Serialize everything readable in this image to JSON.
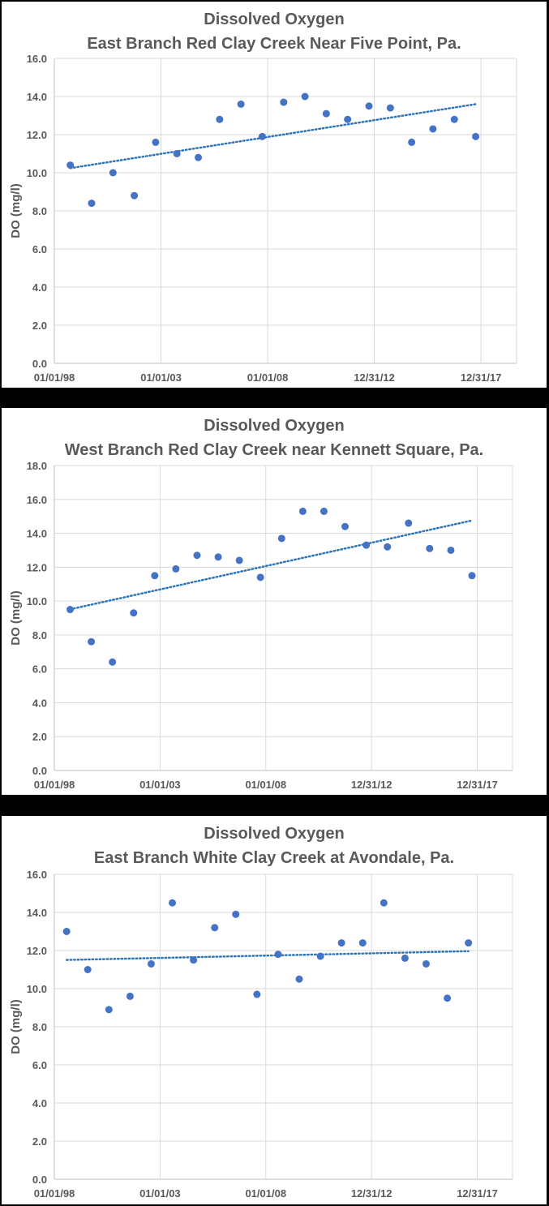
{
  "chart_data": [
    {
      "type": "scatter",
      "title": "Dissolved Oxygen",
      "subtitle": "East Branch Red Clay Creek Near Five Point, Pa.",
      "ylabel": "DO (mg/l)",
      "xlabel": "",
      "x_ticks": [
        "01/01/98",
        "01/01/03",
        "01/01/08",
        "12/31/12",
        "12/31/17"
      ],
      "x_range": [
        "1998-01-01",
        "2019-09-01"
      ],
      "ylim": [
        0,
        16
      ],
      "y_ticks": [
        "0.0",
        "2.0",
        "4.0",
        "6.0",
        "8.0",
        "10.0",
        "12.0",
        "14.0",
        "16.0"
      ],
      "grid": "vertical and horizontal gridlines",
      "trendline": "linear, dotted",
      "colors": {
        "points": "#4472c4",
        "trend": "#2e75b6"
      },
      "x": [
        "1998-10-01",
        "1999-10-01",
        "2000-10-01",
        "2001-10-01",
        "2002-10-01",
        "2003-10-01",
        "2004-10-01",
        "2005-10-01",
        "2006-10-01",
        "2007-10-01",
        "2008-10-01",
        "2009-10-01",
        "2010-10-01",
        "2011-10-01",
        "2012-10-01",
        "2013-10-01",
        "2014-10-01",
        "2015-10-01",
        "2016-10-01",
        "2017-10-01"
      ],
      "y": [
        10.4,
        8.4,
        10.0,
        8.8,
        11.6,
        11.0,
        10.8,
        12.8,
        13.6,
        11.9,
        13.7,
        14.0,
        13.1,
        12.8,
        13.5,
        13.4,
        11.6,
        12.3,
        12.8,
        11.9
      ]
    },
    {
      "type": "scatter",
      "title": "Dissolved Oxygen",
      "subtitle": "West Branch Red Clay Creek near Kennett Square, Pa.",
      "ylabel": "DO (mg/l)",
      "xlabel": "",
      "x_ticks": [
        "01/01/98",
        "01/01/03",
        "01/01/08",
        "12/31/12",
        "12/31/17"
      ],
      "x_range": [
        "1998-01-01",
        "2019-09-01"
      ],
      "ylim": [
        0,
        18
      ],
      "y_ticks": [
        "0.0",
        "2.0",
        "4.0",
        "6.0",
        "8.0",
        "10.0",
        "12.0",
        "14.0",
        "16.0",
        "18.0"
      ],
      "grid": "vertical and horizontal gridlines",
      "trendline": "linear, dotted",
      "colors": {
        "points": "#4472c4",
        "trend": "#2e75b6"
      },
      "x": [
        "1998-10-01",
        "1999-10-01",
        "2000-10-01",
        "2001-10-01",
        "2002-10-01",
        "2003-10-01",
        "2004-10-01",
        "2005-10-01",
        "2006-10-01",
        "2007-10-01",
        "2008-10-01",
        "2009-10-01",
        "2010-10-01",
        "2011-10-01",
        "2012-10-01",
        "2013-10-01",
        "2014-10-01",
        "2015-10-01",
        "2016-10-01",
        "2017-10-01"
      ],
      "y": [
        9.5,
        7.6,
        6.4,
        9.3,
        11.5,
        11.9,
        12.7,
        12.6,
        12.4,
        11.4,
        13.7,
        15.3,
        15.3,
        14.4,
        13.3,
        13.2,
        14.6,
        13.1,
        13.0,
        11.5
      ]
    },
    {
      "type": "scatter",
      "title": "Dissolved Oxygen",
      "subtitle": "East Branch White Clay Creek at Avondale, Pa.",
      "ylabel": "DO (mg/l)",
      "xlabel": "",
      "x_ticks": [
        "01/01/98",
        "01/01/03",
        "01/01/08",
        "12/31/12",
        "12/31/17"
      ],
      "x_range": [
        "1998-01-01",
        "2019-09-01"
      ],
      "ylim": [
        0,
        16
      ],
      "y_ticks": [
        "0.0",
        "2.0",
        "4.0",
        "6.0",
        "8.0",
        "10.0",
        "12.0",
        "14.0",
        "16.0"
      ],
      "grid": "vertical and horizontal gridlines",
      "trendline": "linear, dotted",
      "colors": {
        "points": "#4472c4",
        "trend": "#2e75b6"
      },
      "x": [
        "1998-08-01",
        "1999-08-01",
        "2000-08-01",
        "2001-08-01",
        "2002-08-01",
        "2003-08-01",
        "2004-08-01",
        "2005-08-01",
        "2006-08-01",
        "2007-08-01",
        "2008-08-01",
        "2009-08-01",
        "2010-08-01",
        "2011-08-01",
        "2012-08-01",
        "2013-08-01",
        "2014-08-01",
        "2015-08-01",
        "2016-08-01",
        "2017-08-01"
      ],
      "y": [
        13.0,
        11.0,
        8.9,
        9.6,
        11.3,
        14.5,
        11.5,
        13.2,
        13.9,
        9.7,
        11.8,
        10.5,
        11.7,
        12.4,
        12.4,
        14.5,
        11.6,
        11.3,
        9.5,
        12.4
      ]
    }
  ]
}
